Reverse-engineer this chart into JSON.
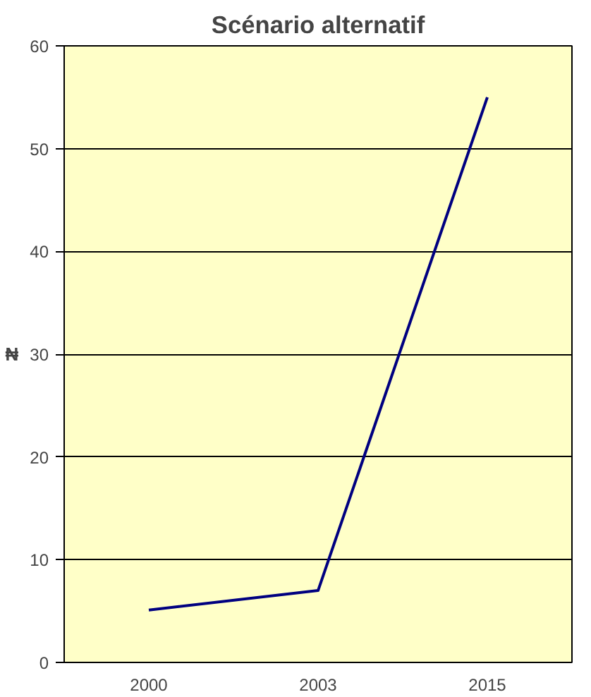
{
  "chart_data": {
    "type": "line",
    "title": "Scénario alternatif",
    "ylabel": "₦",
    "categories": [
      "2000",
      "2003",
      "2015"
    ],
    "series": [
      {
        "color": "#000080",
        "values": [
          5.1,
          7,
          55
        ]
      }
    ],
    "ylim": [
      0,
      60
    ],
    "yticks": [
      0,
      10,
      20,
      30,
      40,
      50,
      60
    ],
    "grid": "y",
    "marker": "none",
    "line_style": "solid"
  }
}
